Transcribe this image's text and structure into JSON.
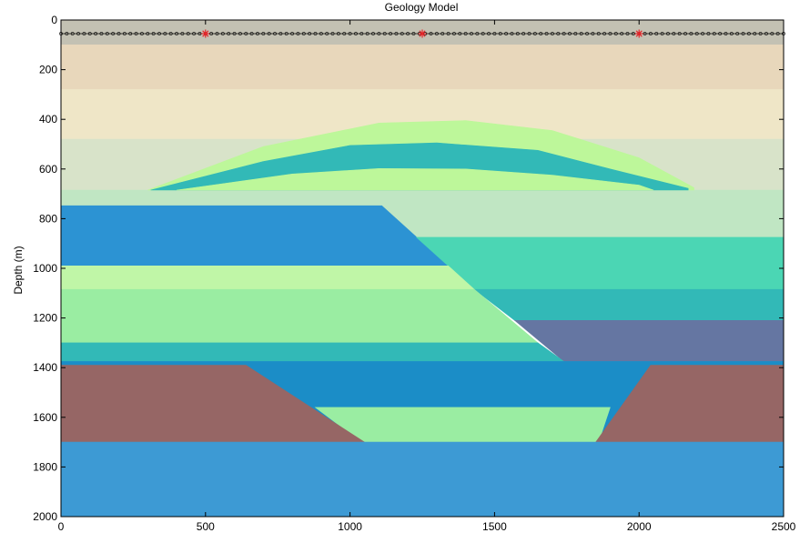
{
  "chart_data": {
    "type": "heatmap",
    "title": "Geology Model",
    "xlabel": "",
    "ylabel": "Depth (m)",
    "xlim": [
      0,
      2500
    ],
    "ylim": [
      0,
      2000
    ],
    "y_reversed": true,
    "x_ticks": [
      0,
      500,
      1000,
      1500,
      2000,
      2500
    ],
    "y_ticks": [
      0,
      200,
      400,
      600,
      800,
      1000,
      1200,
      1400,
      1600,
      1800,
      2000
    ],
    "grid": false,
    "sources_x": [
      500,
      1250,
      2000
    ],
    "source_color": "#e8262a",
    "receiver_spacing": 20,
    "receiver_depth": 0,
    "units": [
      {
        "name": "layer-1",
        "color": "#c3c1b3",
        "polygon": [
          [
            0,
            0
          ],
          [
            2500,
            0
          ],
          [
            2500,
            100
          ],
          [
            0,
            100
          ]
        ]
      },
      {
        "name": "layer-2",
        "color": "#e8d7bb",
        "polygon": [
          [
            0,
            100
          ],
          [
            2500,
            100
          ],
          [
            2500,
            280
          ],
          [
            0,
            280
          ]
        ]
      },
      {
        "name": "layer-3",
        "color": "#efe6c7",
        "polygon": [
          [
            0,
            280
          ],
          [
            2500,
            280
          ],
          [
            2500,
            480
          ],
          [
            0,
            480
          ]
        ]
      },
      {
        "name": "layer-4",
        "color": "#d8e3c9",
        "polygon": [
          [
            0,
            480
          ],
          [
            2500,
            480
          ],
          [
            2500,
            685
          ],
          [
            0,
            685
          ]
        ]
      },
      {
        "name": "layer-5",
        "color": "#c0e6c3",
        "polygon": [
          [
            0,
            685
          ],
          [
            2500,
            685
          ],
          [
            2500,
            875
          ],
          [
            0,
            875
          ]
        ]
      },
      {
        "name": "lens-outer",
        "color": "#bdf79a",
        "polygon": [
          [
            300,
            685
          ],
          [
            700,
            510
          ],
          [
            1100,
            415
          ],
          [
            1400,
            405
          ],
          [
            1700,
            445
          ],
          [
            2000,
            555
          ],
          [
            2190,
            675
          ],
          [
            2190,
            685
          ],
          [
            300,
            685
          ]
        ]
      },
      {
        "name": "lens-band",
        "color": "#32b9b7",
        "polygon": [
          [
            310,
            685
          ],
          [
            700,
            570
          ],
          [
            1000,
            505
          ],
          [
            1300,
            495
          ],
          [
            1650,
            525
          ],
          [
            1900,
            600
          ],
          [
            2170,
            678
          ],
          [
            2170,
            685
          ],
          [
            310,
            685
          ]
        ]
      },
      {
        "name": "lens-inner",
        "color": "#bdf79a",
        "polygon": [
          [
            400,
            685
          ],
          [
            800,
            620
          ],
          [
            1100,
            598
          ],
          [
            1400,
            600
          ],
          [
            1700,
            625
          ],
          [
            2000,
            665
          ],
          [
            2050,
            685
          ],
          [
            400,
            685
          ]
        ]
      },
      {
        "name": "fault-block-upper",
        "color": "#2c93d3",
        "polygon": [
          [
            0,
            748
          ],
          [
            1110,
            748
          ],
          [
            1340,
            990
          ],
          [
            0,
            990
          ]
        ]
      },
      {
        "name": "green-teal-layer",
        "color": "#4bd6b4",
        "polygon": [
          [
            1230,
            875
          ],
          [
            2500,
            875
          ],
          [
            2500,
            1085
          ],
          [
            1430,
            1085
          ]
        ]
      },
      {
        "name": "light-green-layer",
        "color": "#c0f6a7",
        "polygon": [
          [
            0,
            990
          ],
          [
            1340,
            990
          ],
          [
            1430,
            1085
          ],
          [
            0,
            1085
          ]
        ]
      },
      {
        "name": "teal-layer-right",
        "color": "#32b9b7",
        "polygon": [
          [
            1430,
            1085
          ],
          [
            2500,
            1085
          ],
          [
            2500,
            1210
          ],
          [
            1570,
            1210
          ]
        ]
      },
      {
        "name": "green-layer",
        "color": "#9aeda2",
        "polygon": [
          [
            0,
            1085
          ],
          [
            1430,
            1085
          ],
          [
            1650,
            1300
          ],
          [
            0,
            1300
          ]
        ]
      },
      {
        "name": "slate-layer",
        "color": "#6576a2",
        "polygon": [
          [
            1570,
            1210
          ],
          [
            2500,
            1210
          ],
          [
            2500,
            1375
          ],
          [
            1740,
            1375
          ]
        ]
      },
      {
        "name": "teal-layer-left",
        "color": "#32b9b7",
        "polygon": [
          [
            0,
            1300
          ],
          [
            1650,
            1300
          ],
          [
            1740,
            1375
          ],
          [
            0,
            1375
          ]
        ]
      },
      {
        "name": "deep-blue-layer",
        "color": "#1b8dc7",
        "polygon": [
          [
            0,
            1375
          ],
          [
            2500,
            1375
          ],
          [
            2500,
            1700
          ],
          [
            0,
            1700
          ]
        ]
      },
      {
        "name": "basin-fill",
        "color": "#9aeda2",
        "polygon": [
          [
            880,
            1560
          ],
          [
            1900,
            1560
          ],
          [
            1860,
            1700
          ],
          [
            1040,
            1700
          ]
        ]
      },
      {
        "name": "wedge-left",
        "color": "#966665",
        "polygon": [
          [
            0,
            1390
          ],
          [
            640,
            1390
          ],
          [
            1050,
            1700
          ],
          [
            0,
            1700
          ]
        ]
      },
      {
        "name": "wedge-right",
        "color": "#966665",
        "polygon": [
          [
            2040,
            1390
          ],
          [
            2500,
            1390
          ],
          [
            2500,
            1700
          ],
          [
            1850,
            1700
          ]
        ]
      },
      {
        "name": "basement",
        "color": "#3d9ad4",
        "polygon": [
          [
            0,
            1700
          ],
          [
            2500,
            1700
          ],
          [
            2500,
            2000
          ],
          [
            0,
            2000
          ]
        ]
      }
    ]
  }
}
